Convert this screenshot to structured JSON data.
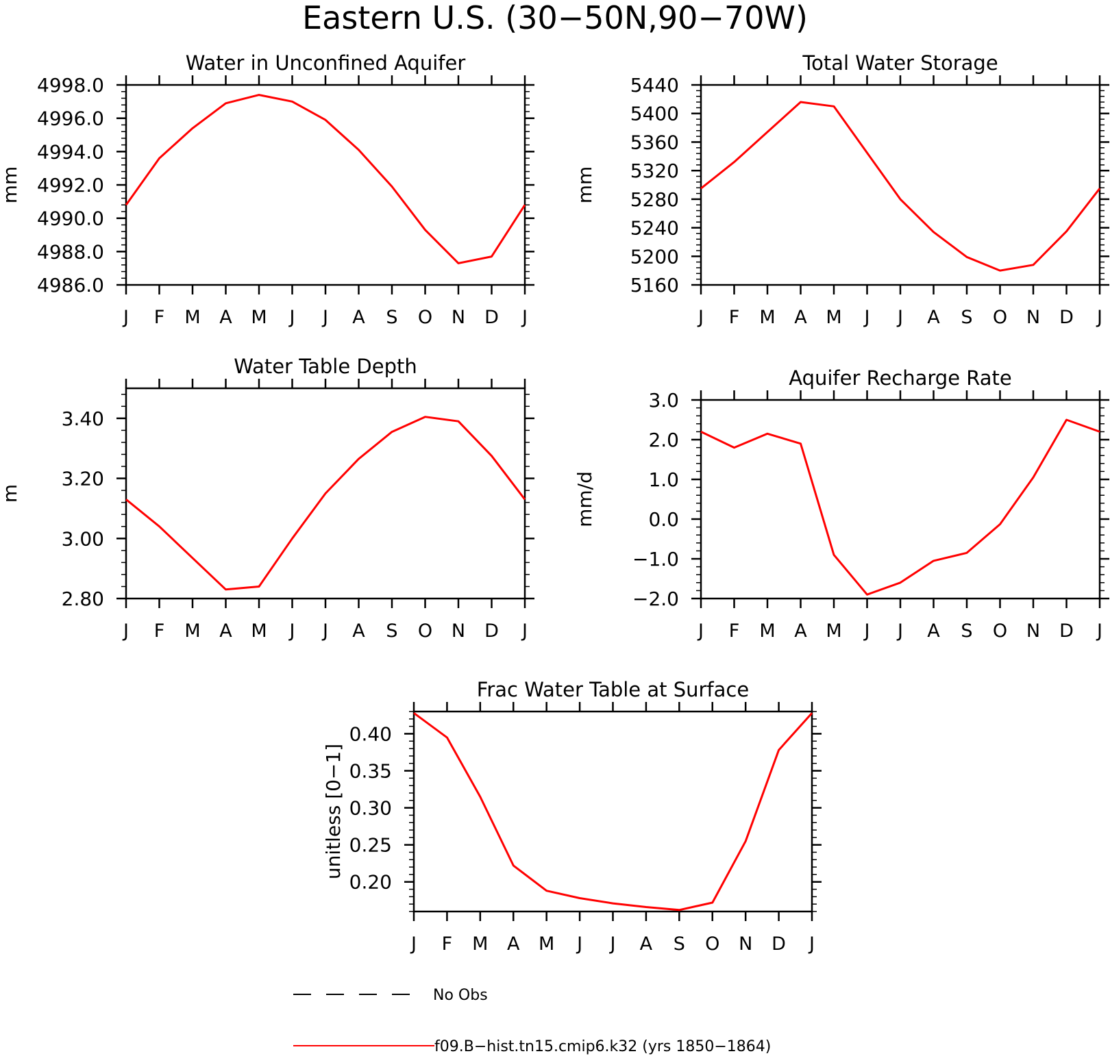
{
  "figure": {
    "title": "Eastern U.S. (30−50N,90−70W)"
  },
  "colors": {
    "model_line": "#ff0000",
    "obs_line": "#000000",
    "axes": "#000000"
  },
  "legend": {
    "entries": [
      {
        "label": "No Obs",
        "style": "dashed",
        "color": "#000000"
      },
      {
        "label": "f09.B−hist.tn15.cmip6.k32 (yrs 1850−1864)",
        "style": "solid",
        "color": "#ff0000"
      }
    ]
  },
  "chart_data": [
    {
      "type": "line",
      "title": "Water in Unconfined Aquifer",
      "ylabel": "mm",
      "xlabel": "",
      "categories": [
        "J",
        "F",
        "M",
        "A",
        "M",
        "J",
        "J",
        "A",
        "S",
        "O",
        "N",
        "D",
        "J"
      ],
      "ylim": [
        4986.0,
        4998.0
      ],
      "yticks": [
        "4986.0",
        "4988.0",
        "4990.0",
        "4992.0",
        "4994.0",
        "4996.0",
        "4998.0"
      ],
      "ytick_values": [
        4986,
        4988,
        4990,
        4992,
        4994,
        4996,
        4998
      ],
      "yminor": 0.4,
      "grid": false,
      "series": [
        {
          "values": [
            4990.8,
            4993.6,
            4995.4,
            4996.9,
            4997.4,
            4997.0,
            4995.9,
            4994.1,
            4991.9,
            4989.3,
            4987.3,
            4987.7,
            4990.8
          ]
        }
      ]
    },
    {
      "type": "line",
      "title": "Total Water Storage",
      "ylabel": "mm",
      "xlabel": "",
      "categories": [
        "J",
        "F",
        "M",
        "A",
        "M",
        "J",
        "J",
        "A",
        "S",
        "O",
        "N",
        "D",
        "J"
      ],
      "ylim": [
        5160,
        5440
      ],
      "yticks": [
        "5160",
        "5200",
        "5240",
        "5280",
        "5320",
        "5360",
        "5400",
        "5440"
      ],
      "ytick_values": [
        5160,
        5200,
        5240,
        5280,
        5320,
        5360,
        5400,
        5440
      ],
      "yminor": 8,
      "grid": false,
      "series": [
        {
          "values": [
            5295,
            5332,
            5374,
            5416,
            5410,
            5345,
            5280,
            5234,
            5199,
            5180,
            5188,
            5235,
            5295
          ]
        }
      ]
    },
    {
      "type": "line",
      "title": "Water Table Depth",
      "ylabel": "m",
      "xlabel": "",
      "categories": [
        "J",
        "F",
        "M",
        "A",
        "M",
        "J",
        "J",
        "A",
        "S",
        "O",
        "N",
        "D",
        "J"
      ],
      "ylim": [
        2.8,
        3.5
      ],
      "yticks": [
        "2.80",
        "3.00",
        "3.20",
        "3.40"
      ],
      "ytick_values": [
        2.8,
        3.0,
        3.2,
        3.4
      ],
      "yminor": 0.04,
      "grid": false,
      "series": [
        {
          "values": [
            3.13,
            3.04,
            2.935,
            2.83,
            2.84,
            3.0,
            3.15,
            3.265,
            3.355,
            3.405,
            3.39,
            3.275,
            3.13
          ]
        }
      ]
    },
    {
      "type": "line",
      "title": "Aquifer Recharge Rate",
      "ylabel": "mm/d",
      "xlabel": "",
      "categories": [
        "J",
        "F",
        "M",
        "A",
        "M",
        "J",
        "J",
        "A",
        "S",
        "O",
        "N",
        "D",
        "J"
      ],
      "ylim": [
        -2.0,
        3.0
      ],
      "yticks": [
        "−2.0",
        "−1.0",
        "0.0",
        "1.0",
        "2.0",
        "3.0"
      ],
      "ytick_values": [
        -2,
        -1,
        0,
        1,
        2,
        3
      ],
      "yminor": 0.2,
      "grid": false,
      "series": [
        {
          "values": [
            2.2,
            1.8,
            2.15,
            1.9,
            -0.9,
            -1.9,
            -1.6,
            -1.05,
            -0.85,
            -0.13,
            1.05,
            2.5,
            2.2
          ]
        }
      ]
    },
    {
      "type": "line",
      "title": "Frac Water Table at Surface",
      "ylabel": "unitless [0−1]",
      "xlabel": "",
      "categories": [
        "J",
        "F",
        "M",
        "A",
        "M",
        "J",
        "J",
        "A",
        "S",
        "O",
        "N",
        "D",
        "J"
      ],
      "ylim": [
        0.16,
        0.43
      ],
      "yticks": [
        "0.20",
        "0.25",
        "0.30",
        "0.35",
        "0.40"
      ],
      "ytick_values": [
        0.2,
        0.25,
        0.3,
        0.35,
        0.4
      ],
      "yminor": 0.01,
      "grid": false,
      "series": [
        {
          "values": [
            0.428,
            0.395,
            0.315,
            0.222,
            0.188,
            0.178,
            0.171,
            0.166,
            0.162,
            0.172,
            0.255,
            0.378,
            0.428
          ]
        }
      ]
    }
  ]
}
